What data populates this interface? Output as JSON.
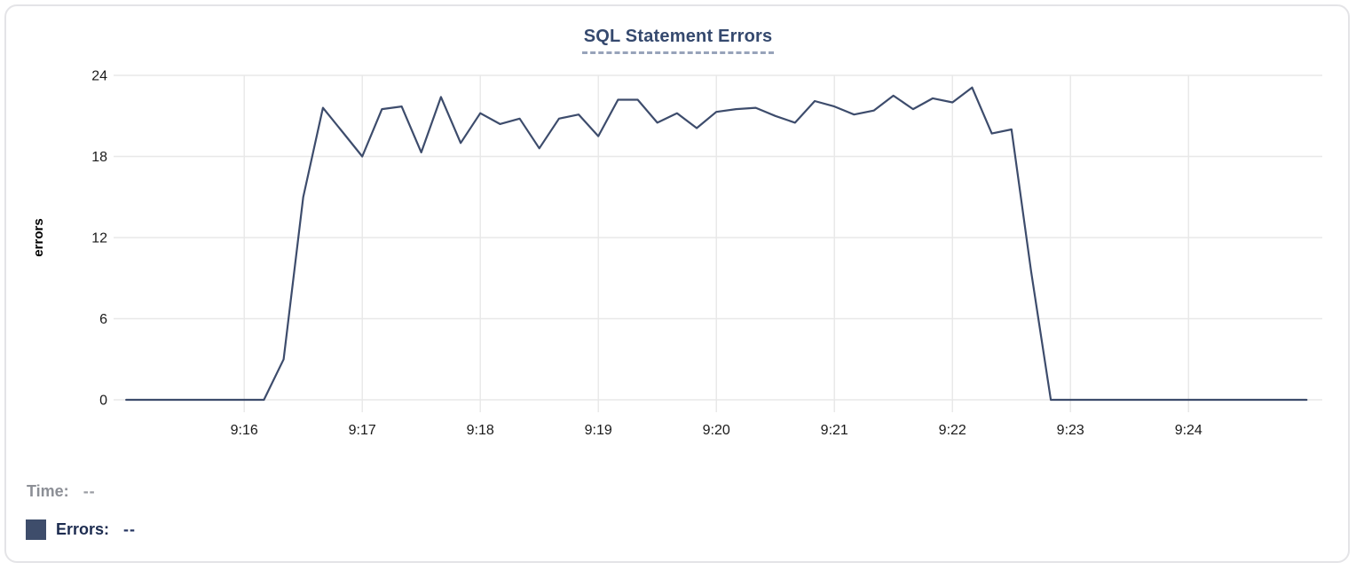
{
  "chart_data": {
    "type": "line",
    "title": "SQL Statement Errors",
    "xlabel": "",
    "ylabel": "errors",
    "ylim": [
      0,
      24
    ],
    "y_ticks": [
      0,
      6,
      12,
      18,
      24
    ],
    "x_domain": [
      "9:14:59",
      "9:25:08"
    ],
    "x_ticks": [
      {
        "time": "9:16:00",
        "label": "9:16"
      },
      {
        "time": "9:17:00",
        "label": "9:17"
      },
      {
        "time": "9:18:00",
        "label": "9:18"
      },
      {
        "time": "9:19:00",
        "label": "9:19"
      },
      {
        "time": "9:20:00",
        "label": "9:20"
      },
      {
        "time": "9:21:00",
        "label": "9:21"
      },
      {
        "time": "9:22:00",
        "label": "9:22"
      },
      {
        "time": "9:23:00",
        "label": "9:23"
      },
      {
        "time": "9:24:00",
        "label": "9:24"
      }
    ],
    "grid": true,
    "legend_position": "bottom-left",
    "series": [
      {
        "name": "Errors",
        "color": "#3d4c6c",
        "points": [
          [
            "9:15:00",
            0
          ],
          [
            "9:15:10",
            0
          ],
          [
            "9:15:20",
            0
          ],
          [
            "9:15:30",
            0
          ],
          [
            "9:15:40",
            0
          ],
          [
            "9:15:50",
            0
          ],
          [
            "9:16:00",
            0
          ],
          [
            "9:16:10",
            0
          ],
          [
            "9:16:20",
            3
          ],
          [
            "9:16:30",
            15
          ],
          [
            "9:16:40",
            21.6
          ],
          [
            "9:16:50",
            19.8
          ],
          [
            "9:17:00",
            18
          ],
          [
            "9:17:10",
            21.5
          ],
          [
            "9:17:20",
            21.7
          ],
          [
            "9:17:30",
            18.3
          ],
          [
            "9:17:40",
            22.4
          ],
          [
            "9:17:50",
            19
          ],
          [
            "9:18:00",
            21.2
          ],
          [
            "9:18:10",
            20.4
          ],
          [
            "9:18:20",
            20.8
          ],
          [
            "9:18:30",
            18.6
          ],
          [
            "9:18:40",
            20.8
          ],
          [
            "9:18:50",
            21.1
          ],
          [
            "9:19:00",
            19.5
          ],
          [
            "9:19:10",
            22.2
          ],
          [
            "9:19:20",
            22.2
          ],
          [
            "9:19:30",
            20.5
          ],
          [
            "9:19:40",
            21.2
          ],
          [
            "9:19:50",
            20.1
          ],
          [
            "9:20:00",
            21.3
          ],
          [
            "9:20:10",
            21.5
          ],
          [
            "9:20:20",
            21.6
          ],
          [
            "9:20:30",
            21.0
          ],
          [
            "9:20:40",
            20.5
          ],
          [
            "9:20:50",
            22.1
          ],
          [
            "9:21:00",
            21.7
          ],
          [
            "9:21:10",
            21.1
          ],
          [
            "9:21:20",
            21.4
          ],
          [
            "9:21:30",
            22.5
          ],
          [
            "9:21:40",
            21.5
          ],
          [
            "9:21:50",
            22.3
          ],
          [
            "9:22:00",
            22.0
          ],
          [
            "9:22:10",
            23.1
          ],
          [
            "9:22:20",
            19.7
          ],
          [
            "9:22:30",
            20.0
          ],
          [
            "9:22:40",
            9.5
          ],
          [
            "9:22:50",
            0
          ],
          [
            "9:23:00",
            0
          ],
          [
            "9:23:10",
            0
          ],
          [
            "9:23:20",
            0
          ],
          [
            "9:23:30",
            0
          ],
          [
            "9:23:40",
            0
          ],
          [
            "9:23:50",
            0
          ],
          [
            "9:24:00",
            0
          ],
          [
            "9:24:10",
            0
          ],
          [
            "9:24:20",
            0
          ],
          [
            "9:24:30",
            0
          ],
          [
            "9:24:40",
            0
          ],
          [
            "9:24:50",
            0
          ],
          [
            "9:25:00",
            0
          ]
        ]
      }
    ]
  },
  "readout": {
    "time_label": "Time:",
    "time_value": "--",
    "errors_label": "Errors:",
    "errors_value": "--",
    "swatch_color": "#3e4d6b"
  },
  "colors": {
    "title": "#35496e",
    "line": "#3d4c6c",
    "grid": "#e8e8e8",
    "tick_text": "#1a1a1a"
  }
}
